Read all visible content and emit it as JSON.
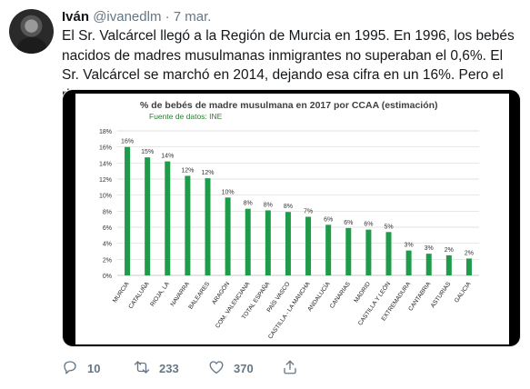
{
  "tweet": {
    "name": "Iván",
    "handle": "@ivanedlm",
    "separator": "·",
    "date": "7 mar.",
    "text": "El Sr. Valcárcel llegó a la Región de Murcia en 1995. En 1996, los bebés nacidos de madres musulmanas inmigrantes no superaban el 0,6%. El Sr. Valcárcel se marchó en 2014, dejando esa cifra en un 16%. Pero el riesgo es Vox..."
  },
  "actions": {
    "replies": "10",
    "retweets": "233",
    "likes": "370"
  },
  "icons": [
    "reply-icon",
    "retweet-icon",
    "like-icon",
    "share-icon"
  ],
  "colors": {
    "bar": "#1f9c4a",
    "title": "#404040",
    "subtitle": "#2e7d32",
    "gray_text": "#657786"
  },
  "chart_data": {
    "type": "bar",
    "title": "% de bebés de madre musulmana en 2017 por CCAA (estimación)",
    "subtitle": "Fuente de datos: INE",
    "categories": [
      "MURCIA",
      "CATALUÑA",
      "RIOJA, LA",
      "NAVARRA",
      "BALEARES",
      "ARAGÓN",
      "COM. VALENCIANA",
      "TOTAL ESPAÑA",
      "PAÍS VASCO",
      "CASTILLA - LA MANCHA",
      "ANDALUCÍA",
      "CANARIAS",
      "MADRID",
      "CASTILLA Y LEÓN",
      "EXTREMADURA",
      "CANTABRIA",
      "ASTURIAS",
      "GALICIA"
    ],
    "values": [
      16,
      14.7,
      14.2,
      12.4,
      12.1,
      9.7,
      8.3,
      8.1,
      7.9,
      7.3,
      6.3,
      5.9,
      5.7,
      5.4,
      3.1,
      2.7,
      2.5,
      2.1
    ],
    "labels": [
      "16%",
      "15%",
      "14%",
      "12%",
      "12%",
      "10%",
      "8%",
      "8%",
      "8%",
      "7%",
      "6%",
      "6%",
      "6%",
      "5%",
      "3%",
      "3%",
      "2%",
      "2%"
    ],
    "yticks": [
      "0%",
      "2%",
      "4%",
      "6%",
      "8%",
      "10%",
      "12%",
      "14%",
      "16%",
      "18%"
    ],
    "ylim": [
      0,
      18
    ],
    "grid": true
  }
}
